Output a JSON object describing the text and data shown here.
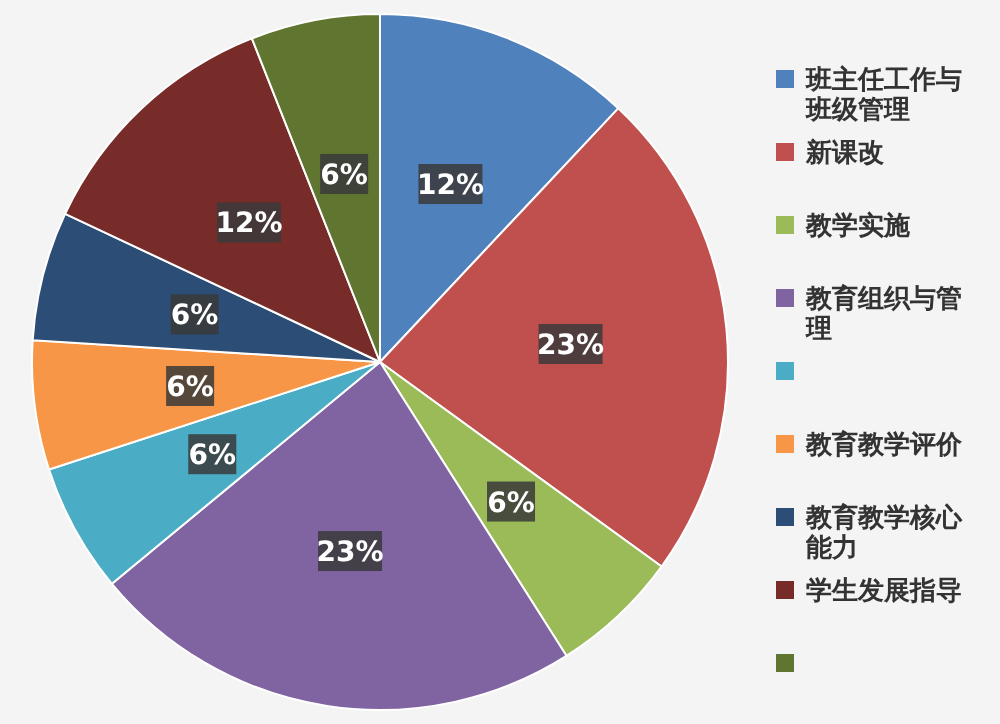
{
  "chart_data": {
    "type": "pie",
    "categories": [
      "班主任工作与班级管理",
      "新课改",
      "教学实施",
      "教育组织与管理",
      null,
      "教育教学评价",
      "教育教学核心能力",
      "学生发展指导",
      null
    ],
    "values": [
      12,
      23,
      6,
      23,
      6,
      6,
      6,
      12,
      6
    ],
    "colors": [
      "#4f81bd",
      "#c0504d",
      "#9bbb59",
      "#8064a2",
      "#4bacc6",
      "#f79646",
      "#2c4d75",
      "#772c2a",
      "#5f7530"
    ],
    "value_labels": [
      "12%",
      "23%",
      "6%",
      "23%",
      "6%",
      "6%",
      "6%",
      "12%",
      "6%"
    ],
    "legend": "right"
  }
}
